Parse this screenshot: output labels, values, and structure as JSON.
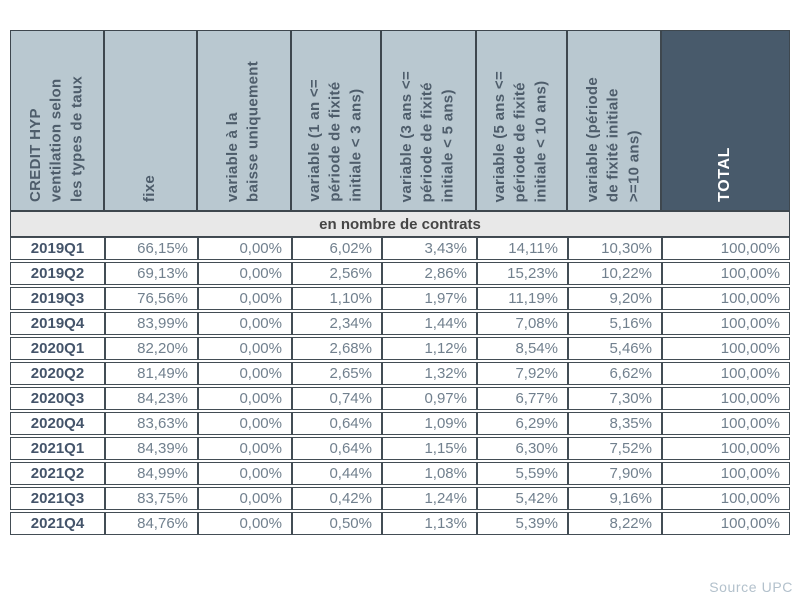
{
  "page": {
    "source_note": "Source UPC"
  },
  "colors": {
    "header_bg": "#b9c8d0",
    "header_dark_bg": "#485a6b",
    "header_text": "#4e5d6b",
    "subheader_bg": "#e8e8e8",
    "data_text": "#71808e",
    "label_text": "#44546a",
    "border": "#3e474e",
    "source_text": "#b3c1cc"
  },
  "table": {
    "columns": [
      {
        "label": "CREDIT HYP\nventilation selon\nles types de taux"
      },
      {
        "label": "fixe"
      },
      {
        "label": "variable à la\nbaisse uniquement"
      },
      {
        "label": "variable (1 an <=\npériode de fixité\ninitiale < 3 ans)"
      },
      {
        "label": "variable (3 ans <=\npériode de fixité\ninitiale < 5 ans)"
      },
      {
        "label": "variable (5 ans <=\npériode de fixité\ninitiale < 10 ans)"
      },
      {
        "label": "variable (période\nde fixité initiale\n>=10 ans)"
      },
      {
        "label": "TOTAL"
      }
    ],
    "subheader": "en nombre de contrats",
    "rows": [
      {
        "label": "2019Q1",
        "values": [
          "66,15%",
          "0,00%",
          "6,02%",
          "3,43%",
          "14,11%",
          "10,30%",
          "100,00%"
        ]
      },
      {
        "label": "2019Q2",
        "values": [
          "69,13%",
          "0,00%",
          "2,56%",
          "2,86%",
          "15,23%",
          "10,22%",
          "100,00%"
        ]
      },
      {
        "label": "2019Q3",
        "values": [
          "76,56%",
          "0,00%",
          "1,10%",
          "1,97%",
          "11,19%",
          "9,20%",
          "100,00%"
        ]
      },
      {
        "label": "2019Q4",
        "values": [
          "83,99%",
          "0,00%",
          "2,34%",
          "1,44%",
          "7,08%",
          "5,16%",
          "100,00%"
        ]
      },
      {
        "label": "2020Q1",
        "values": [
          "82,20%",
          "0,00%",
          "2,68%",
          "1,12%",
          "8,54%",
          "5,46%",
          "100,00%"
        ]
      },
      {
        "label": "2020Q2",
        "values": [
          "81,49%",
          "0,00%",
          "2,65%",
          "1,32%",
          "7,92%",
          "6,62%",
          "100,00%"
        ]
      },
      {
        "label": "2020Q3",
        "values": [
          "84,23%",
          "0,00%",
          "0,74%",
          "0,97%",
          "6,77%",
          "7,30%",
          "100,00%"
        ]
      },
      {
        "label": "2020Q4",
        "values": [
          "83,63%",
          "0,00%",
          "0,64%",
          "1,09%",
          "6,29%",
          "8,35%",
          "100,00%"
        ]
      },
      {
        "label": "2021Q1",
        "values": [
          "84,39%",
          "0,00%",
          "0,64%",
          "1,15%",
          "6,30%",
          "7,52%",
          "100,00%"
        ]
      },
      {
        "label": "2021Q2",
        "values": [
          "84,99%",
          "0,00%",
          "0,44%",
          "1,08%",
          "5,59%",
          "7,90%",
          "100,00%"
        ]
      },
      {
        "label": "2021Q3",
        "values": [
          "83,75%",
          "0,00%",
          "0,42%",
          "1,24%",
          "5,42%",
          "9,16%",
          "100,00%"
        ]
      },
      {
        "label": "2021Q4",
        "values": [
          "84,76%",
          "0,00%",
          "0,50%",
          "1,13%",
          "5,39%",
          "8,22%",
          "100,00%"
        ]
      }
    ]
  },
  "chart_data": {
    "type": "table",
    "title": "CREDIT HYP ventilation selon les types de taux",
    "unit": "en nombre de contrats",
    "categories": [
      "2019Q1",
      "2019Q2",
      "2019Q3",
      "2019Q4",
      "2020Q1",
      "2020Q2",
      "2020Q3",
      "2020Q4",
      "2021Q1",
      "2021Q2",
      "2021Q3",
      "2021Q4"
    ],
    "series": [
      {
        "name": "fixe",
        "values": [
          66.15,
          69.13,
          76.56,
          83.99,
          82.2,
          81.49,
          84.23,
          83.63,
          84.39,
          84.99,
          83.75,
          84.76
        ]
      },
      {
        "name": "variable à la baisse uniquement",
        "values": [
          0.0,
          0.0,
          0.0,
          0.0,
          0.0,
          0.0,
          0.0,
          0.0,
          0.0,
          0.0,
          0.0,
          0.0
        ]
      },
      {
        "name": "variable (1 an <= période de fixité initiale < 3 ans)",
        "values": [
          6.02,
          2.56,
          1.1,
          2.34,
          2.68,
          2.65,
          0.74,
          0.64,
          0.64,
          0.44,
          0.42,
          0.5
        ]
      },
      {
        "name": "variable (3 ans <= période de fixité initiale < 5 ans)",
        "values": [
          3.43,
          2.86,
          1.97,
          1.44,
          1.12,
          1.32,
          0.97,
          1.09,
          1.15,
          1.08,
          1.24,
          1.13
        ]
      },
      {
        "name": "variable (5 ans <= période de fixité initiale < 10 ans)",
        "values": [
          14.11,
          15.23,
          11.19,
          7.08,
          8.54,
          7.92,
          6.77,
          6.29,
          6.3,
          5.59,
          5.42,
          5.39
        ]
      },
      {
        "name": "variable (période de fixité initiale >=10 ans)",
        "values": [
          10.3,
          10.22,
          9.2,
          5.16,
          5.46,
          6.62,
          7.3,
          8.35,
          7.52,
          7.9,
          9.16,
          8.22
        ]
      },
      {
        "name": "TOTAL",
        "values": [
          100.0,
          100.0,
          100.0,
          100.0,
          100.0,
          100.0,
          100.0,
          100.0,
          100.0,
          100.0,
          100.0,
          100.0
        ]
      }
    ],
    "source": "Source UPC",
    "value_unit": "percent"
  }
}
